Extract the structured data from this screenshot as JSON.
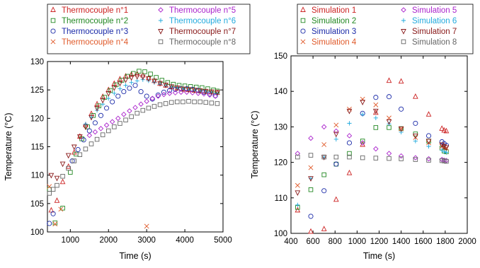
{
  "chart_data": [
    {
      "type": "scatter",
      "xlabel": "Time (s)",
      "ylabel": "Temperature (°C)",
      "xlim": [
        400,
        5000
      ],
      "ylim": [
        100,
        130
      ],
      "xticks": [
        "1000",
        "2000",
        "3000",
        "4000",
        "5000"
      ],
      "yticks": [
        "100",
        "105",
        "110",
        "115",
        "120",
        "125",
        "130"
      ],
      "legend_placement": "top",
      "series": [
        {
          "name": "Thermocouple n°1",
          "color": "#cc2222",
          "marker": "triangle-up",
          "x": [
            500,
            650,
            800,
            950,
            1100,
            1250,
            1400,
            1550,
            1700,
            1850,
            2000,
            2150,
            2300,
            2450,
            2600,
            2750,
            2900,
            3050,
            3200,
            3350,
            3500,
            3650,
            3800,
            3950,
            4100,
            4250,
            4400,
            4550,
            4700,
            4850
          ],
          "y": [
            103.8,
            105.5,
            108.8,
            111.5,
            114,
            116.8,
            118.8,
            120.8,
            122.5,
            123.8,
            125,
            126.1,
            126.9,
            127.4,
            127.7,
            127.8,
            127.6,
            127.1,
            126.6,
            126.1,
            125.8,
            125.5,
            125.3,
            125.1,
            125,
            124.9,
            124.8,
            124.7,
            124.6,
            124.5
          ]
        },
        {
          "name": "Thermocouple n°2",
          "color": "#228822",
          "marker": "square",
          "x": [
            450,
            600,
            800,
            1000,
            1150,
            1300,
            1450,
            1600,
            1750,
            1900,
            2050,
            2200,
            2350,
            2500,
            2650,
            2800,
            2950,
            3100,
            3250,
            3400,
            3550,
            3700,
            3850,
            4000,
            4150,
            4300,
            4450,
            4600,
            4750,
            4850
          ],
          "y": [
            107.5,
            101.6,
            104.2,
            110.5,
            113.7,
            116.4,
            118.5,
            120.5,
            122.2,
            123.7,
            124.9,
            125.9,
            126.7,
            127.4,
            127.9,
            128.3,
            128.2,
            127.8,
            127.2,
            126.7,
            126.3,
            126,
            125.8,
            125.7,
            125.6,
            125.5,
            125.4,
            125.2,
            125,
            124.8
          ]
        },
        {
          "name": "Thermocouple n°3",
          "color": "#1a2aa8",
          "marker": "circle",
          "x": [
            450,
            550,
            1050,
            1200,
            1350,
            1500,
            1650,
            1800,
            1950,
            2100,
            2250,
            2400,
            2550,
            2700,
            2850,
            3000,
            3150,
            3300,
            3450,
            3600,
            3750,
            3900,
            4050,
            4200,
            4350,
            4500,
            4650,
            4800
          ],
          "y": [
            101.5,
            103.2,
            112.5,
            114.5,
            116.2,
            117.8,
            119.2,
            120.5,
            121.8,
            122.9,
            123.9,
            124.7,
            125.3,
            125.8,
            124.7,
            123.9,
            123.4,
            124.1,
            124.6,
            124.9,
            125.1,
            125.2,
            125.2,
            125.1,
            124.9,
            124.6,
            124.3,
            124
          ]
        },
        {
          "name": "Thermocouple n°4",
          "color": "#e05a2a",
          "marker": "x",
          "x": [
            450,
            600,
            750,
            3000
          ],
          "y": [
            108,
            101.4,
            104,
            101
          ]
        },
        {
          "name": "Thermocouple n°5",
          "color": "#aa22cc",
          "marker": "diamond",
          "x": [
            1500,
            1650,
            1800,
            1950,
            2100,
            2250,
            2400,
            2550,
            2700,
            2850,
            3000,
            3150,
            3300,
            3450,
            3600,
            3750,
            3900,
            4050,
            4200,
            4350,
            4500,
            4650,
            4800
          ],
          "y": [
            117,
            117.6,
            118.2,
            118.8,
            119.4,
            120,
            120.7,
            121.3,
            121.9,
            122.5,
            123,
            123.5,
            123.9,
            124.2,
            124.4,
            124.5,
            124.6,
            124.6,
            124.5,
            124.4,
            124.3,
            124.1,
            123.9
          ]
        },
        {
          "name": "Thermocouple n°6",
          "color": "#22aadd",
          "marker": "plus",
          "x": [
            1400,
            1550,
            1700,
            1850,
            2000,
            2150,
            2300,
            2450,
            2600,
            2750,
            2900,
            3050,
            3200,
            3350,
            3500,
            3650,
            3800,
            3950,
            4100,
            4250,
            4400,
            4550,
            4700,
            4850
          ],
          "y": [
            119,
            120.2,
            121.4,
            122.5,
            123.5,
            124.4,
            125.2,
            125.8,
            126.3,
            126.6,
            126.8,
            126.6,
            126.3,
            126,
            125.7,
            125.5,
            125.3,
            125.2,
            125,
            124.9,
            124.8,
            124.6,
            124.5,
            124.3
          ]
        },
        {
          "name": "Thermocouple n°7",
          "color": "#881818",
          "marker": "triangle-down",
          "x": [
            500,
            650,
            800,
            950,
            1100,
            1250,
            1400,
            1550,
            1700,
            1850,
            2000,
            2150,
            2300,
            2450,
            2600,
            2750,
            2900,
            3050,
            3200,
            3350,
            3500,
            3650,
            3800,
            3950,
            4100,
            4250,
            4400,
            4550,
            4700,
            4850
          ],
          "y": [
            110,
            109.5,
            112,
            113.5,
            115,
            116.8,
            118.5,
            120.2,
            121.8,
            123.2,
            124.4,
            125.4,
            126.2,
            126.8,
            127.2,
            127.4,
            127.3,
            127,
            126.6,
            126.2,
            125.9,
            125.6,
            125.4,
            125.2,
            125.1,
            125,
            124.9,
            124.8,
            124.7,
            124.6
          ]
        },
        {
          "name": "Thermocouple n°8",
          "color": "#666666",
          "marker": "square",
          "x": [
            450,
            550,
            650,
            800,
            950,
            1100,
            1250,
            1400,
            1550,
            1700,
            1850,
            2000,
            2150,
            2300,
            2450,
            2600,
            2750,
            2900,
            3050,
            3200,
            3350,
            3500,
            3650,
            3800,
            3950,
            4100,
            4250,
            4400,
            4550,
            4700,
            4850
          ],
          "y": [
            106.8,
            107.5,
            108.2,
            109.8,
            111.2,
            112.5,
            113.6,
            114.6,
            115.5,
            116.3,
            117.1,
            117.8,
            118.5,
            119.1,
            119.7,
            120.3,
            120.9,
            121.4,
            121.8,
            122.1,
            122.4,
            122.6,
            122.8,
            122.9,
            122.9,
            123,
            122.9,
            122.9,
            122.8,
            122.7,
            122.6
          ]
        }
      ]
    },
    {
      "type": "scatter",
      "xlabel": "Time (s)",
      "ylabel": "Temperature (°C)",
      "xlim": [
        400,
        2000
      ],
      "ylim": [
        100,
        150
      ],
      "xticks": [
        "400",
        "600",
        "800",
        "1000",
        "1200",
        "1400",
        "1600",
        "1800",
        "2000"
      ],
      "yticks": [
        "100",
        "110",
        "120",
        "130",
        "140",
        "150"
      ],
      "legend_placement": "top",
      "series": [
        {
          "name": "Simulation 1",
          "color": "#cc2222",
          "marker": "triangle-up",
          "x": [
            460,
            580,
            700,
            810,
            930,
            1050,
            1170,
            1290,
            1400,
            1530,
            1650,
            1770,
            1790,
            1810
          ],
          "y": [
            106.5,
            100.5,
            101.2,
            109.5,
            117,
            125,
            134,
            143,
            142.8,
            138.5,
            133.5,
            129.5,
            129,
            128.8
          ]
        },
        {
          "name": "Simulation 2",
          "color": "#228822",
          "marker": "square",
          "x": [
            460,
            580,
            700,
            810,
            930,
            1050,
            1170,
            1290,
            1400,
            1530,
            1650,
            1770,
            1790,
            1810
          ],
          "y": [
            107.3,
            112.3,
            116.5,
            119.5,
            122.5,
            126,
            129.8,
            129.8,
            129.5,
            128,
            126,
            124,
            123.2,
            123
          ]
        },
        {
          "name": "Simulation 3",
          "color": "#1a2aa8",
          "marker": "circle",
          "x": [
            580,
            700,
            810,
            930,
            1050,
            1170,
            1290,
            1400,
            1530,
            1650,
            1770,
            1790,
            1810
          ],
          "y": [
            104.8,
            112,
            119.5,
            125.5,
            133.8,
            138.3,
            138.5,
            135,
            131,
            127.5,
            125.8,
            125.3,
            124.8
          ]
        },
        {
          "name": "Simulation 4",
          "color": "#e05a2a",
          "marker": "x",
          "x": [
            460,
            580,
            700,
            810,
            930,
            1050,
            1170,
            1290,
            1400,
            1530,
            1650,
            1770,
            1790,
            1810
          ],
          "y": [
            113.5,
            118.5,
            125,
            130.5,
            135,
            137.8,
            136.2,
            132.5,
            129.5,
            127,
            125.5,
            124.5,
            124.2,
            124
          ]
        },
        {
          "name": "Simulation 5",
          "color": "#aa22cc",
          "marker": "diamond",
          "x": [
            460,
            580,
            700,
            810,
            930,
            1050,
            1170,
            1290,
            1400,
            1530,
            1650,
            1770,
            1790,
            1810
          ],
          "y": [
            122.5,
            126.8,
            130,
            128.8,
            127.5,
            125.5,
            123.8,
            122.5,
            121.8,
            121.3,
            121,
            120.8,
            120.6,
            120.5
          ]
        },
        {
          "name": "Simulation 6",
          "color": "#22aadd",
          "marker": "plus",
          "x": [
            460,
            580,
            700,
            810,
            930,
            1050,
            1170,
            1290,
            1400,
            1530,
            1650,
            1770,
            1790,
            1810
          ],
          "y": [
            108,
            115.5,
            121.5,
            126.5,
            131,
            133.5,
            132.5,
            130.8,
            128.5,
            126,
            124.5,
            123.5,
            123,
            122.8
          ]
        },
        {
          "name": "Simulation 7",
          "color": "#881818",
          "marker": "triangle-down",
          "x": [
            460,
            580,
            700,
            810,
            930,
            1050,
            1170,
            1290,
            1400,
            1530,
            1650,
            1770,
            1790,
            1810
          ],
          "y": [
            111.5,
            115.5,
            121.5,
            128,
            134.5,
            137,
            134.5,
            131.5,
            129.5,
            127.5,
            126,
            125,
            124.5,
            124.2
          ]
        },
        {
          "name": "Simulation 8",
          "color": "#666666",
          "marker": "square",
          "x": [
            460,
            580,
            700,
            810,
            930,
            1050,
            1170,
            1290,
            1400,
            1530,
            1650,
            1770,
            1790,
            1810
          ],
          "y": [
            121.5,
            122,
            121.5,
            121.5,
            121.5,
            121.3,
            121.2,
            121.1,
            121,
            120.8,
            120.6,
            120.5,
            120.4,
            120.3
          ]
        }
      ]
    }
  ]
}
